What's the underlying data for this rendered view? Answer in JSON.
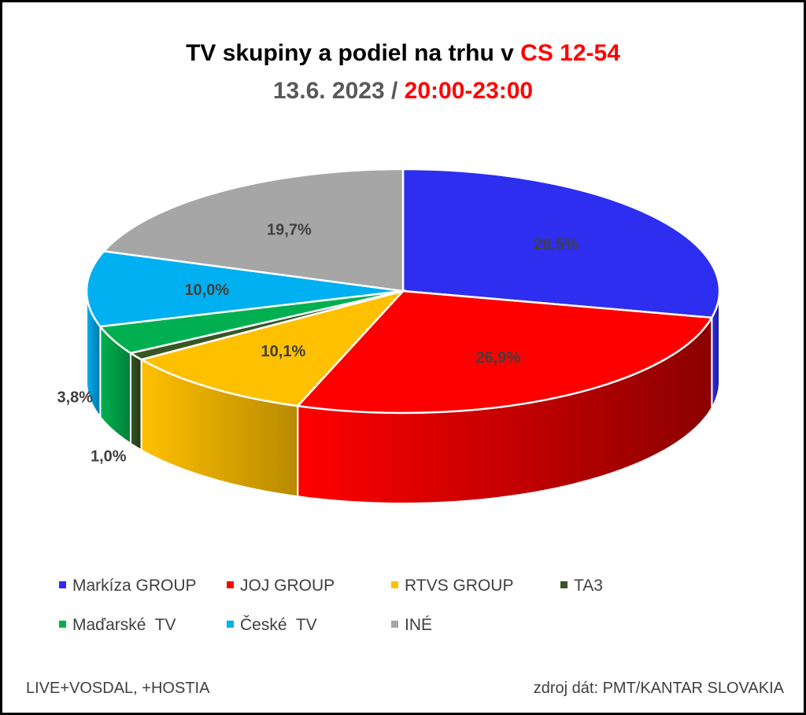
{
  "title": {
    "line1_prefix": "TV skupiny a podiel na trhu v ",
    "line1_highlight": "CS 12-54",
    "line2_prefix": "13.6. 2023 / ",
    "line2_highlight": "20:00-23:00"
  },
  "footer": {
    "left": "LIVE+VOSDAL, +HOSTIA",
    "right": "zdroj dát: PMT/KANTAR SLOVAKIA"
  },
  "chart_data": {
    "type": "pie",
    "style": "3d",
    "slices": [
      {
        "name": "Markíza GROUP",
        "value": 28.5,
        "label": "28,5%",
        "color": "#2e2ef0",
        "side_color": "#1a1a8c"
      },
      {
        "name": "JOJ GROUP",
        "value": 26.9,
        "label": "26,9%",
        "color": "#ff0000",
        "side_color": "#8b0000"
      },
      {
        "name": "RTVS GROUP",
        "value": 10.1,
        "label": "10,1%",
        "color": "#ffc000",
        "side_color": "#b88a00"
      },
      {
        "name": "TA3",
        "value": 1.0,
        "label": "1,0%",
        "color": "#375623",
        "side_color": "#22361a"
      },
      {
        "name": "Maďarské  TV",
        "value": 3.8,
        "label": "3,8%",
        "color": "#00b050",
        "side_color": "#00803a"
      },
      {
        "name": "České  TV",
        "value": 10.0,
        "label": "10,0%",
        "color": "#00b0f0",
        "side_color": "#0078a8"
      },
      {
        "name": "INÉ",
        "value": 19.7,
        "label": "19,7%",
        "color": "#a6a6a6",
        "side_color": "#6e6e6e"
      }
    ],
    "legend_position": "bottom"
  }
}
